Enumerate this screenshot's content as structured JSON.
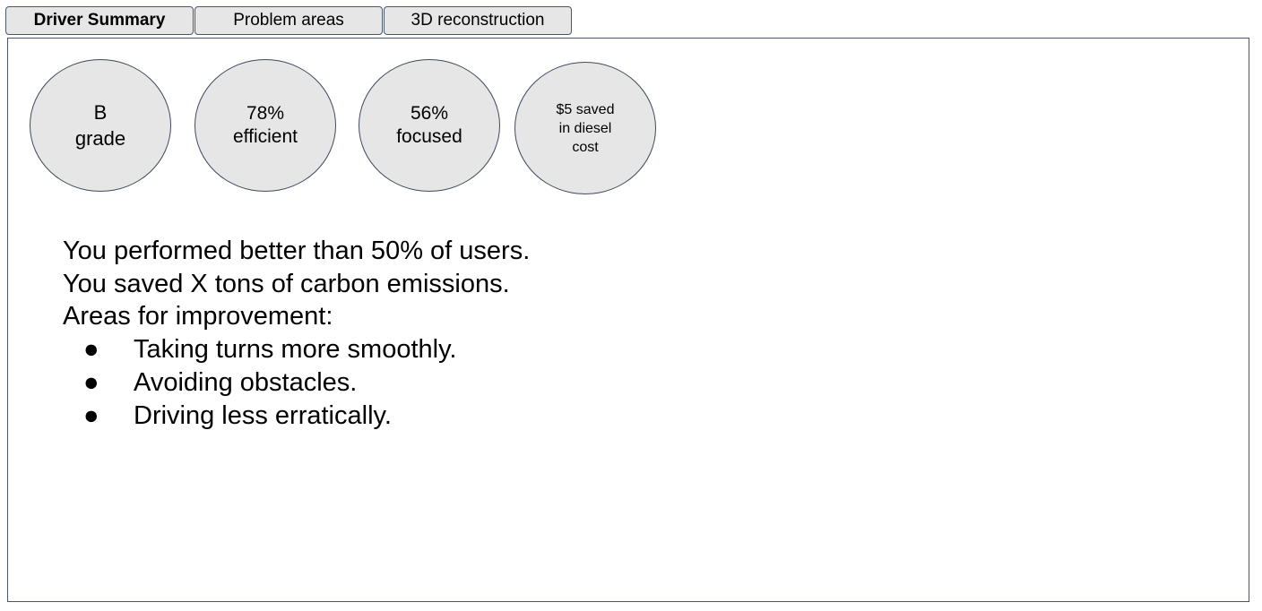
{
  "tabs": [
    {
      "label": "Driver Summary",
      "active": true
    },
    {
      "label": "Problem areas",
      "active": false
    },
    {
      "label": "3D reconstruction",
      "active": false
    }
  ],
  "metrics": [
    {
      "lines": [
        "B",
        "grade"
      ]
    },
    {
      "lines": [
        "78%",
        "efficient"
      ]
    },
    {
      "lines": [
        "56%",
        "focused"
      ]
    },
    {
      "lines": [
        "$5 saved",
        "in diesel",
        "cost"
      ]
    }
  ],
  "summary": {
    "performance": "You performed better than 50% of users.",
    "carbon": "You saved X tons of carbon emissions.",
    "improvement_heading": "Areas for improvement:",
    "bullet_glyph": "●",
    "improvements": [
      "Taking turns more smoothly.",
      "Avoiding obstacles.",
      "Driving less erratically."
    ]
  },
  "colors": {
    "border": "#4a5568",
    "fill": "#e6e6e6",
    "background": "#ffffff"
  }
}
